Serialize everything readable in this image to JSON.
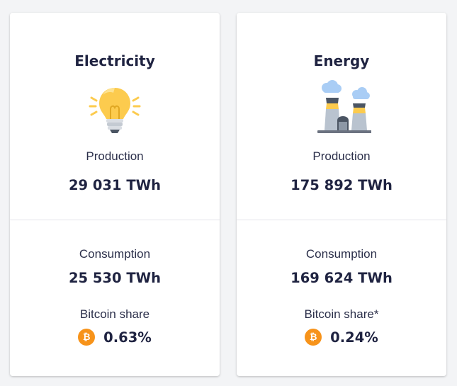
{
  "cards": [
    {
      "title": "Electricity",
      "icon": "lightbulb-icon",
      "production_label": "Production",
      "production_value": "29 031 TWh",
      "consumption_label": "Consumption",
      "consumption_value": "25 530 TWh",
      "share_label": "Bitcoin share",
      "share_icon": "bitcoin-icon",
      "share_value": "0.63%"
    },
    {
      "title": "Energy",
      "icon": "power-plant-icon",
      "production_label": "Production",
      "production_value": "175 892 TWh",
      "consumption_label": "Consumption",
      "consumption_value": "169 624 TWh",
      "share_label": "Bitcoin share*",
      "share_icon": "bitcoin-icon",
      "share_value": "0.24%"
    }
  ],
  "colors": {
    "text_dark": "#1f2341",
    "bitcoin_orange": "#f7931a",
    "bulb_yellow": "#fccb4e",
    "plant_gray": "#b9c3cf"
  }
}
